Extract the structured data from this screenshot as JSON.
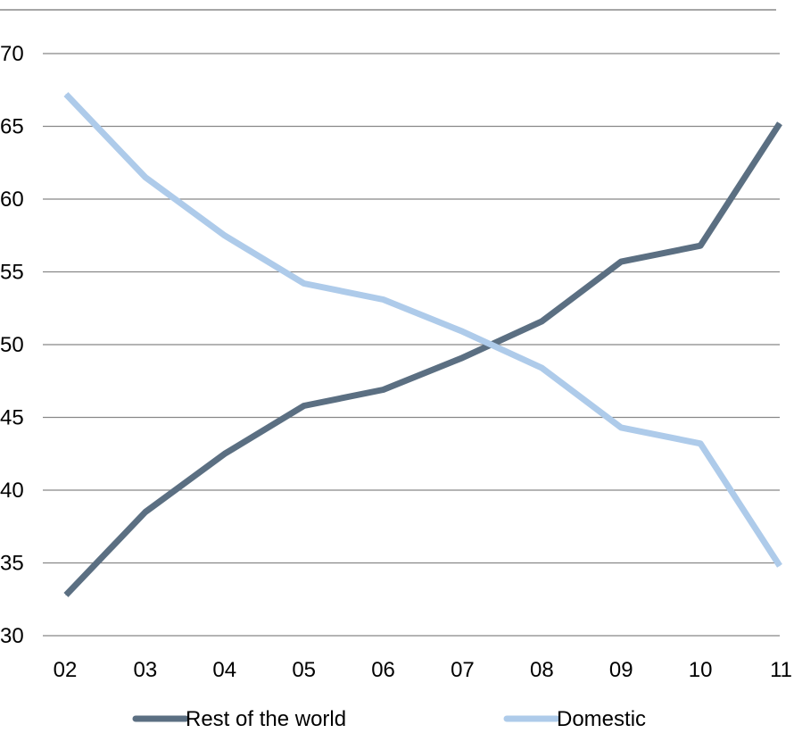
{
  "chart_data": {
    "type": "line",
    "categories": [
      "02",
      "03",
      "04",
      "05",
      "06",
      "07",
      "08",
      "09",
      "10",
      "11"
    ],
    "ylim": [
      30,
      70
    ],
    "y_ticks": [
      "30",
      "35",
      "40",
      "45",
      "50",
      "55",
      "60",
      "65",
      "70"
    ],
    "grid": true,
    "legend_placement": "bottom",
    "series": [
      {
        "name": "Rest of the world",
        "color": "#5B6F82",
        "values": [
          32.8,
          38.5,
          42.5,
          45.8,
          46.9,
          49.1,
          51.6,
          55.7,
          56.8,
          65.2
        ]
      },
      {
        "name": "Domestic",
        "color": "#AECBEA",
        "values": [
          67.2,
          61.5,
          57.5,
          54.2,
          53.1,
          50.9,
          48.4,
          44.3,
          43.2,
          34.8
        ]
      }
    ]
  }
}
